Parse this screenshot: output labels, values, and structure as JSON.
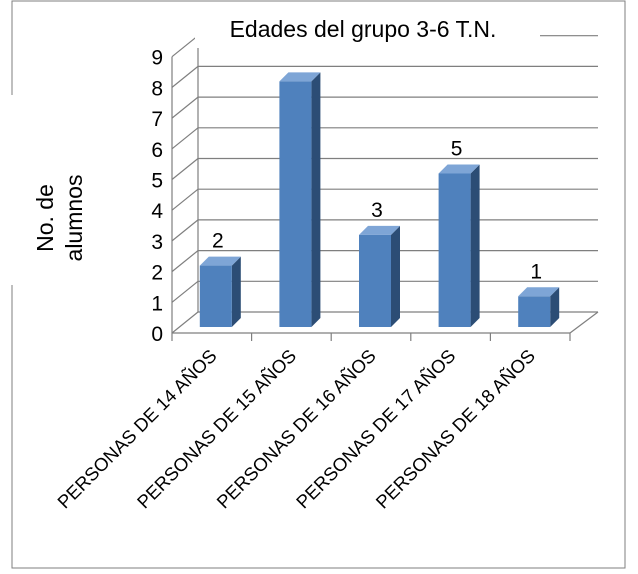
{
  "chart_data": {
    "type": "bar",
    "title": "Edades del grupo 3-6 T.N.",
    "ylabel_lines": [
      "No. de",
      "alumnos"
    ],
    "categories": [
      "PERSONAS DE 14 AÑOS",
      "PERSONAS DE 15 AÑOS",
      "PERSONAS DE 16 AÑOS",
      "PERSONAS DE 17 AÑOS",
      "PERSONAS DE 18 AÑOS"
    ],
    "values": [
      2,
      8,
      3,
      5,
      1
    ],
    "data_labels": [
      "2",
      "",
      "3",
      "5",
      "1"
    ],
    "ylim": [
      0,
      9
    ],
    "yticks": [
      "0",
      "1",
      "2",
      "3",
      "4",
      "5",
      "6",
      "7",
      "8",
      "9"
    ],
    "bar_style": "3d-column",
    "grid": true,
    "legend": "none",
    "colors": {
      "bar_front": "#4f81bd",
      "bar_side": "#2c4d75",
      "bar_top": "#7ea5d6",
      "grid": "#7f7f7f",
      "border": "#7f7f7f"
    }
  }
}
